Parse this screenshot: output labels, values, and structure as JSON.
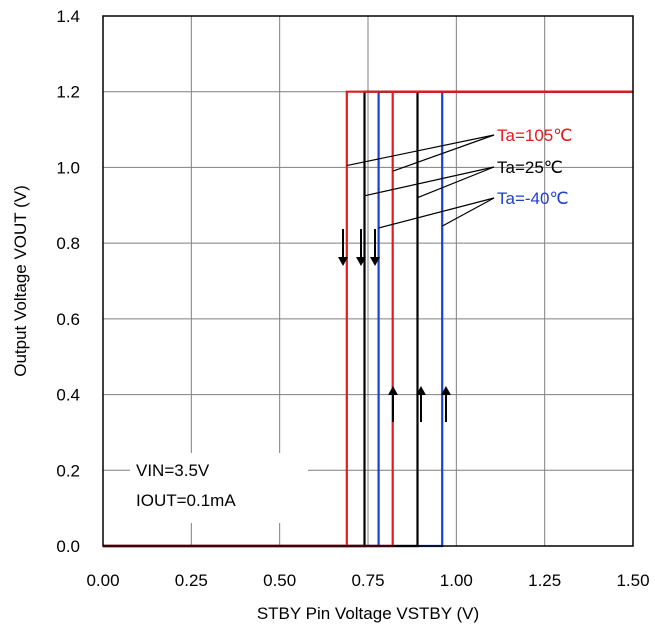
{
  "chart_data": {
    "type": "line",
    "title": "",
    "xlabel": "STBY Pin Voltage VSTBY (V)",
    "ylabel": "Output Voltage VOUT (V)",
    "xlim": [
      0.0,
      1.5
    ],
    "ylim": [
      0.0,
      1.4
    ],
    "x_ticks": [
      "0.00",
      "0.25",
      "0.50",
      "0.75",
      "1.00",
      "1.25",
      "1.50"
    ],
    "y_ticks": [
      "0.0",
      "0.2",
      "0.4",
      "0.6",
      "0.8",
      "1.0",
      "1.2",
      "1.4"
    ],
    "grid": true,
    "series": [
      {
        "name": "Ta=105℃",
        "color": "#e41a1c",
        "rising": {
          "x": [
            0.0,
            0.82,
            0.82,
            1.5
          ],
          "y": [
            0.0,
            0.0,
            1.2,
            1.2
          ]
        },
        "falling": {
          "x": [
            1.5,
            0.69,
            0.69,
            0.0
          ],
          "y": [
            1.2,
            1.2,
            0.0,
            0.0
          ]
        }
      },
      {
        "name": "Ta=25℃",
        "color": "#000000",
        "rising": {
          "x": [
            0.0,
            0.89,
            0.89,
            1.5
          ],
          "y": [
            0.0,
            0.0,
            1.2,
            1.2
          ]
        },
        "falling": {
          "x": [
            1.5,
            0.74,
            0.74,
            0.0
          ],
          "y": [
            1.2,
            1.2,
            0.0,
            0.0
          ]
        }
      },
      {
        "name": "Ta=-40℃",
        "color": "#1f3fcf",
        "rising": {
          "x": [
            0.0,
            0.96,
            0.96,
            1.5
          ],
          "y": [
            0.0,
            0.0,
            1.2,
            1.2
          ]
        },
        "falling": {
          "x": [
            1.5,
            0.78,
            0.78,
            0.0
          ],
          "y": [
            1.2,
            1.2,
            0.0,
            0.0
          ]
        }
      }
    ],
    "annotations": {
      "conditions": [
        "VIN=3.5V",
        "IOUT=0.1mA"
      ]
    }
  }
}
